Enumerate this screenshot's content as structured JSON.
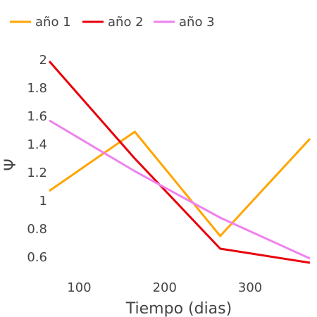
{
  "chart_data": {
    "type": "line",
    "xlabel": "Tiempo (dias)",
    "ylabel": "Ψ",
    "xlim": [
      65,
      370
    ],
    "ylim": [
      0.5,
      2.0
    ],
    "xticks": [
      100,
      200,
      300
    ],
    "yticks": [
      0.6,
      0.8,
      1,
      1.2,
      1.4,
      1.6,
      1.8,
      2
    ],
    "ytick_labels": [
      "0.6",
      "0.8",
      "1",
      "1.2",
      "1.4",
      "1.6",
      "1.8",
      "2"
    ],
    "grid": false,
    "legend_position": "top-left, horizontal",
    "series": [
      {
        "name": "año 1",
        "color": "#FFA500",
        "x": [
          65,
          165,
          265,
          370
        ],
        "y": [
          1.07,
          1.49,
          0.75,
          1.44
        ]
      },
      {
        "name": "año 2",
        "color": "#E8000B",
        "x": [
          65,
          165,
          265,
          370
        ],
        "y": [
          1.99,
          1.3,
          0.66,
          0.56
        ]
      },
      {
        "name": "año 3",
        "color": "#EE82EE",
        "x": [
          65,
          165,
          265,
          370
        ],
        "y": [
          1.57,
          1.21,
          0.88,
          0.59
        ]
      }
    ]
  }
}
